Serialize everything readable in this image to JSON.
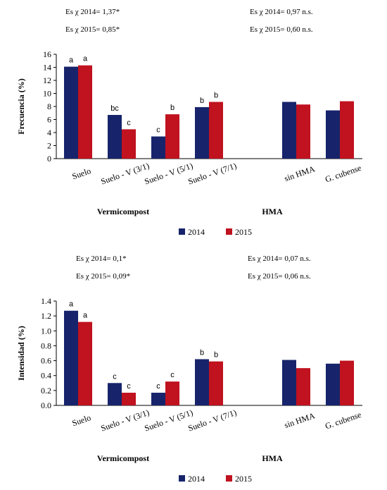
{
  "colors": {
    "2014": "#17246b",
    "2015": "#c0121f",
    "axis": "#000000"
  },
  "legend_labels": [
    "2014",
    "2015"
  ],
  "chart_data": [
    {
      "type": "bar",
      "ylabel": "Frecuencia (%)",
      "ylim": [
        0,
        16
      ],
      "yticks": [
        "0",
        "2",
        "4",
        "6",
        "8",
        "10",
        "12",
        "14",
        "16"
      ],
      "categories": [
        "Suelo",
        "Suelo - V (3/1)",
        "Suelo - V (5/1)",
        "Suelo - V (7/1)",
        "",
        "sin HMA",
        "G. cubense"
      ],
      "group_labels": [
        "Vermicompost",
        "HMA"
      ],
      "stats": [
        "Es χ 2014= 1,37*",
        "Es χ 2015= 0,85*",
        "Es χ 2014= 0,97 n.s.",
        "Es χ 2015= 0,60 n.s."
      ],
      "series": [
        {
          "name": "2014",
          "values": [
            14.1,
            6.7,
            3.4,
            7.9,
            null,
            8.7,
            7.4
          ],
          "labels": [
            "a",
            "bc",
            "c",
            "b",
            "",
            "",
            ""
          ]
        },
        {
          "name": "2015",
          "values": [
            14.3,
            4.5,
            6.8,
            8.7,
            null,
            8.3,
            8.8
          ],
          "labels": [
            "a",
            "c",
            "b",
            "b",
            "",
            "",
            ""
          ]
        }
      ]
    },
    {
      "type": "bar",
      "ylabel": "Intensidad (%)",
      "ylim": [
        0,
        1.4
      ],
      "yticks": [
        "0.0",
        "0.2",
        "0.4",
        "0.6",
        "0.8",
        "1.0",
        "1.2",
        "1.4"
      ],
      "categories": [
        "Suelo",
        "Suelo - V (3/1)",
        "Suelo - V (5/1)",
        "Suelo - V (7/1)",
        "",
        "sin HMA",
        "G. cubense"
      ],
      "group_labels": [
        "Vermicompost",
        "HMA"
      ],
      "stats": [
        "Es χ 2014= 0,1*",
        "Es χ 2015= 0,09*",
        "Es χ 2014= 0,07  n.s.",
        "Es χ 2015= 0,06 n.s."
      ],
      "series": [
        {
          "name": "2014",
          "values": [
            1.27,
            0.3,
            0.17,
            0.62,
            null,
            0.61,
            0.56
          ],
          "labels": [
            "a",
            "c",
            "c",
            "b",
            "",
            "",
            ""
          ]
        },
        {
          "name": "2015",
          "values": [
            1.12,
            0.17,
            0.32,
            0.59,
            null,
            0.5,
            0.6
          ],
          "labels": [
            "a",
            "c",
            "c",
            "b",
            "",
            "",
            ""
          ]
        }
      ]
    }
  ]
}
